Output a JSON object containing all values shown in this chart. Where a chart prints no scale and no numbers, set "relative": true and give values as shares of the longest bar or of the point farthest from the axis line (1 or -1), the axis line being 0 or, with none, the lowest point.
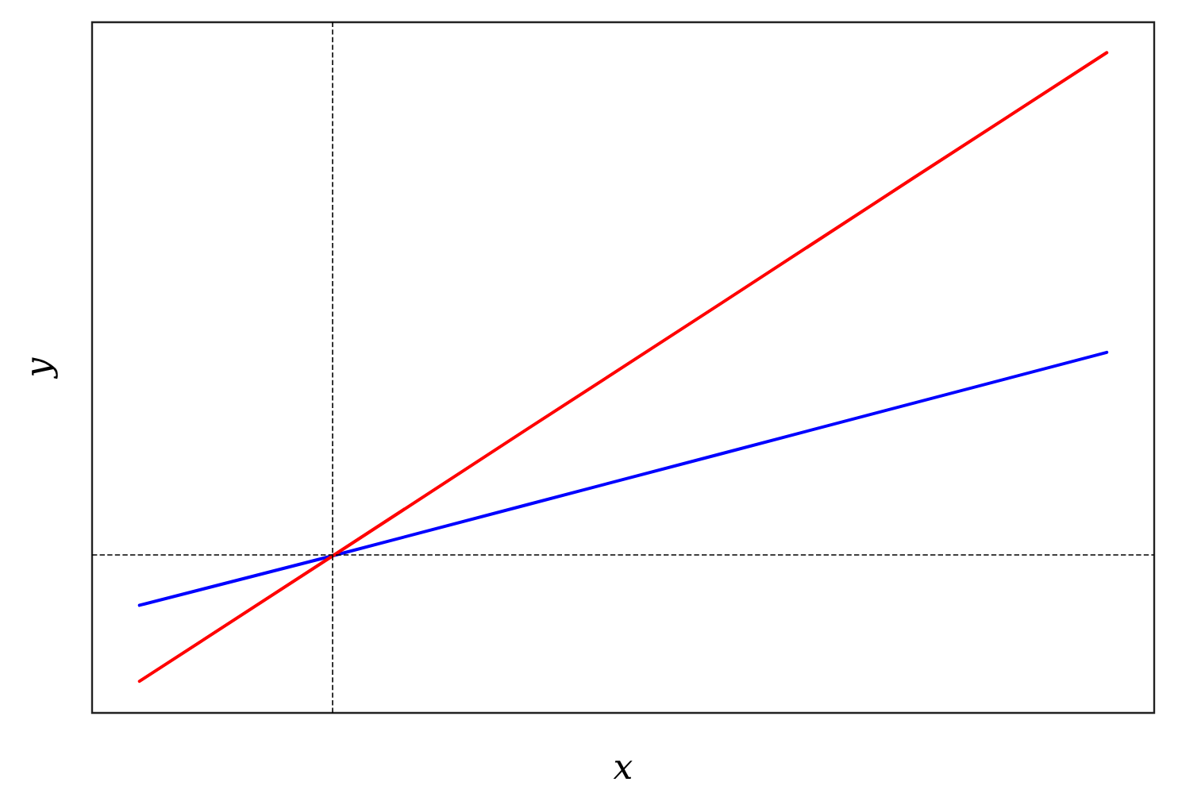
{
  "chart_data": {
    "type": "line",
    "xlabel": "x",
    "ylabel": "y",
    "relative": true,
    "grid": false,
    "marker": "none",
    "line_style": "solid",
    "categories": [
      null,
      null,
      null,
      null,
      null,
      null
    ],
    "series": [
      {
        "color": "#0000ff",
        "values": [
          0.163,
          0.238,
          0.315,
          0.392,
          0.469,
          0.546
        ]
      },
      {
        "color": "#ff0000",
        "values": [
          0.048,
          0.238,
          0.429,
          0.619,
          0.81,
          1.0
        ]
      }
    ],
    "ref_lines": [
      {
        "axis": "y",
        "value": 0.238,
        "color": "#000000",
        "line_style": "dashed"
      }
    ]
  }
}
